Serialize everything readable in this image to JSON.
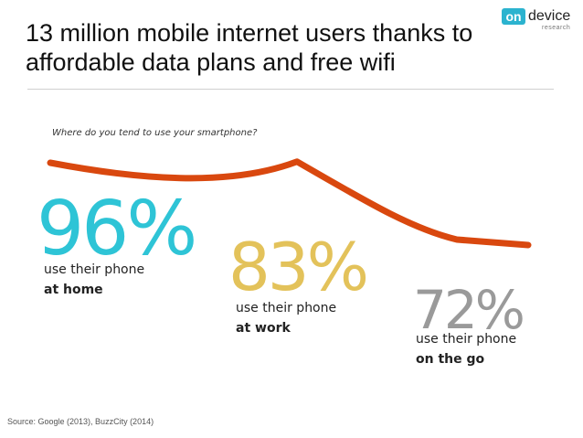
{
  "title": "13 million mobile internet users thanks to affordable data plans and free wifi",
  "logo": {
    "on": "on",
    "device": "device",
    "research": "research",
    "colors": {
      "on_bg": "#2bb3cf"
    }
  },
  "chart_data": {
    "type": "line",
    "title": "Where do you tend to use your smartphone?",
    "categories": [
      "at home",
      "at work",
      "on the go"
    ],
    "values": [
      96,
      83,
      72
    ],
    "unit": "%",
    "line_color": "#d9480f",
    "series": [
      {
        "values": [
          96,
          83,
          72
        ]
      }
    ],
    "labels": [
      {
        "value": "96%",
        "line1": "use their phone",
        "line2": "at home",
        "color": "#2ec4d6"
      },
      {
        "value": "83%",
        "line1": "use their phone",
        "line2": "at work",
        "color": "#e3c25a"
      },
      {
        "value": "72%",
        "line1": "use their phone",
        "line2": "on the go",
        "color": "#9a9a9a"
      }
    ]
  },
  "source": "Source: Google (2013), BuzzCity (2014)"
}
